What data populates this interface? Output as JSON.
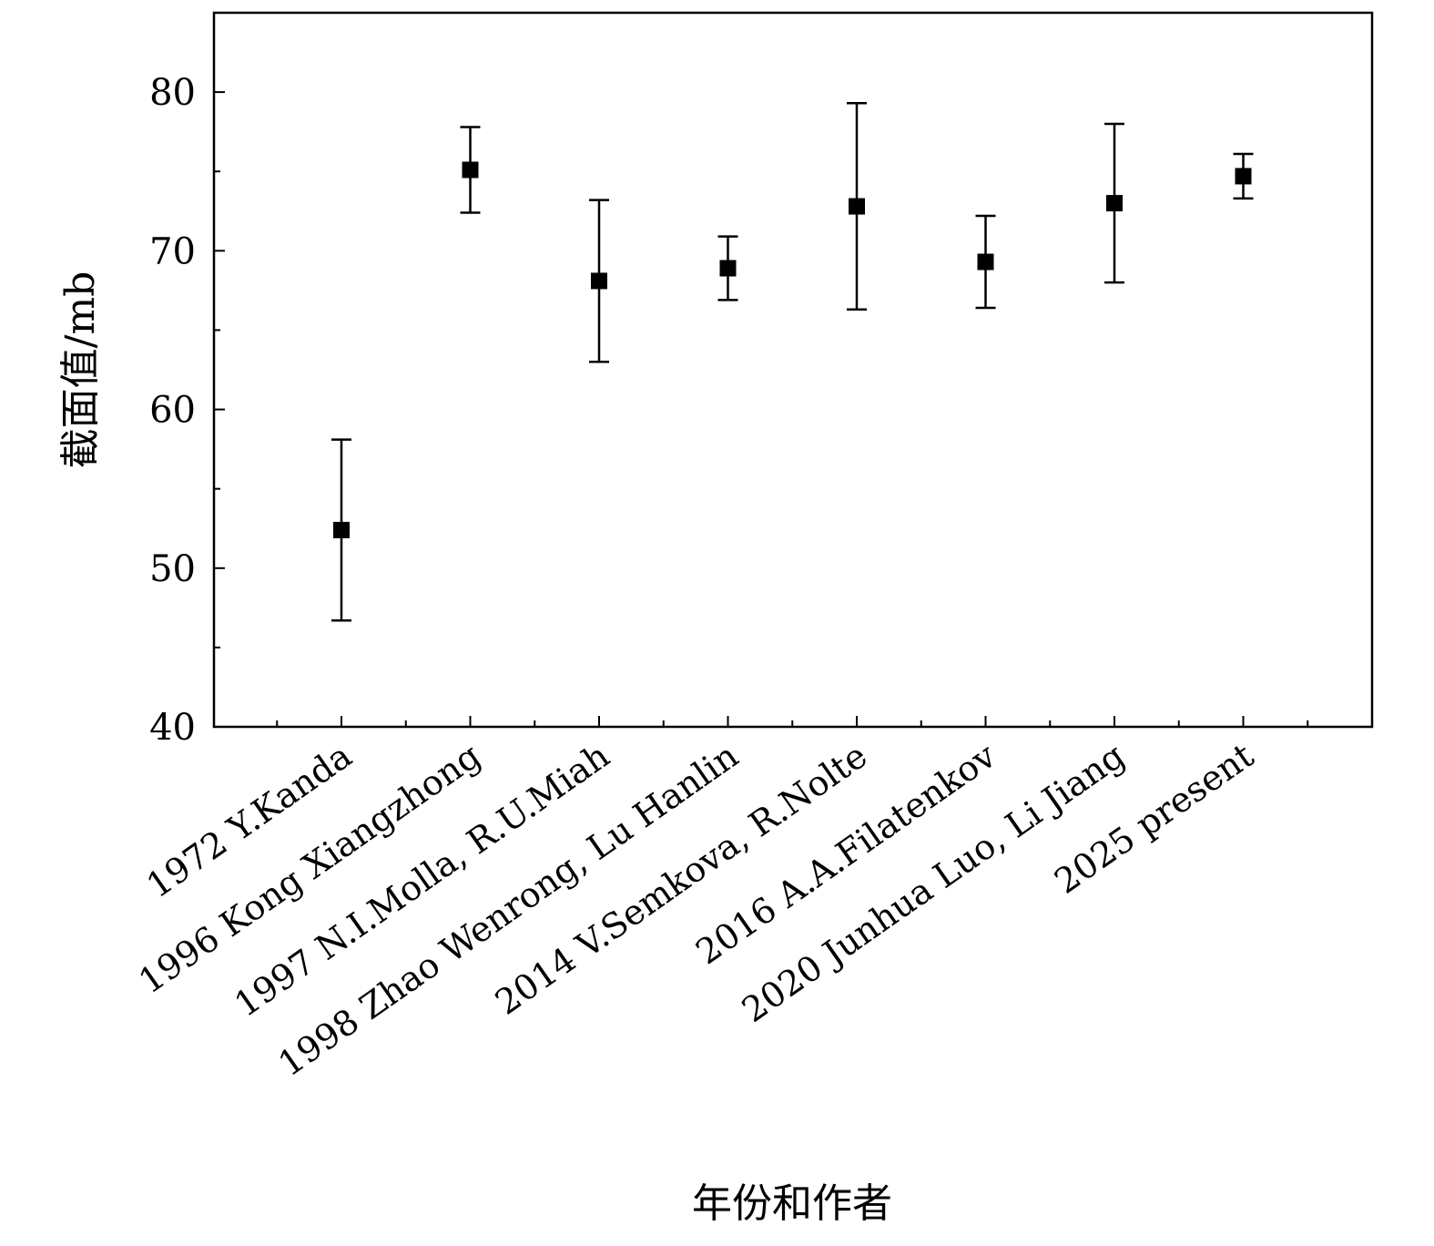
{
  "chart_data": {
    "type": "scatter",
    "title": "",
    "xlabel": "年份和作者",
    "ylabel": "截面值/mb",
    "categories": [
      "1972 Y.Kanda",
      "1996 Kong Xiangzhong",
      "1997 N.I.Molla, R.U.Miah",
      "1998 Zhao Wenrong, Lu Hanlin",
      "2014 V.Semkova, R.Nolte",
      "2016 A.A.Filatenkov",
      "2020 Junhua Luo, Li Jiang",
      "2025 present"
    ],
    "values": [
      52.4,
      75.1,
      68.1,
      68.9,
      72.8,
      69.3,
      73.0,
      74.7
    ],
    "errors": [
      5.7,
      2.7,
      5.1,
      2.0,
      6.5,
      2.9,
      5.0,
      1.4
    ],
    "ylim": [
      40,
      85
    ],
    "yticks": [
      40,
      50,
      60,
      70,
      80
    ],
    "marker": "square",
    "marker_color": "#000000",
    "grid": false,
    "legend": "none"
  }
}
